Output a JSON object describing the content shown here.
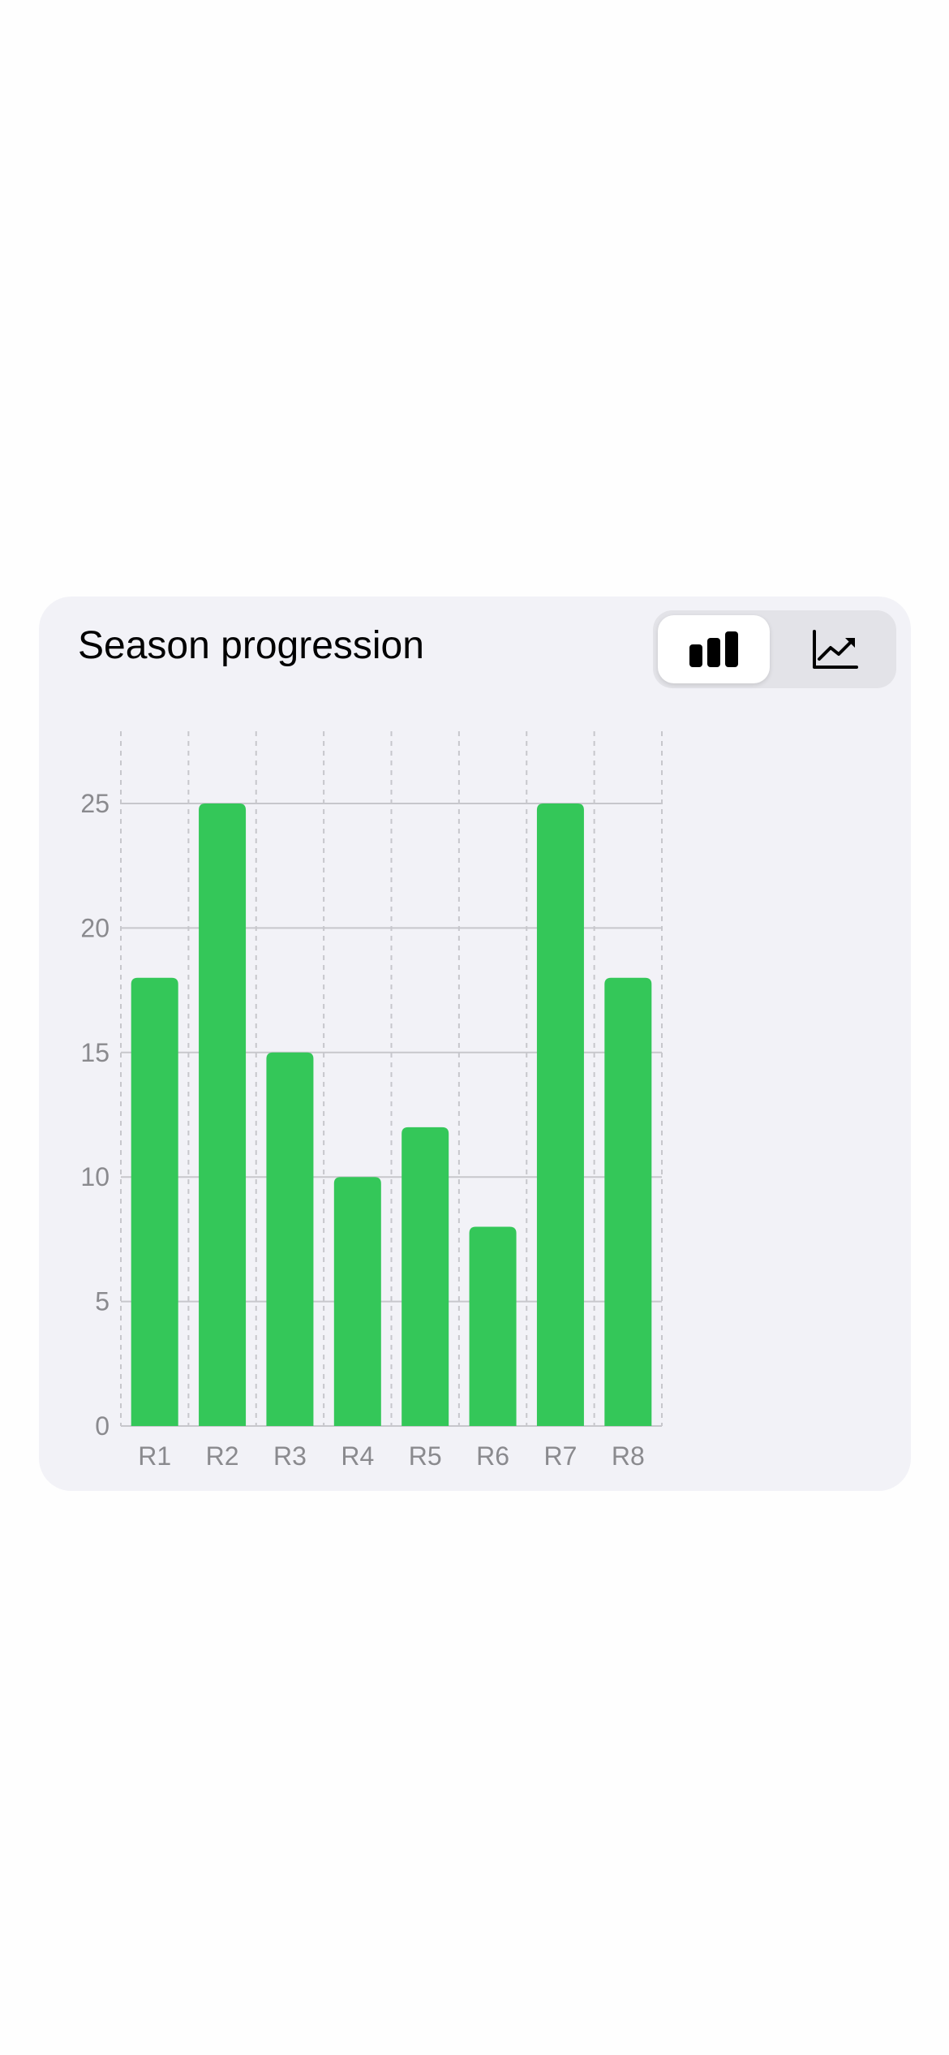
{
  "card": {
    "title": "Season progression"
  },
  "toggle": {
    "options": [
      {
        "icon": "bar-chart-icon",
        "selected": true
      },
      {
        "icon": "line-chart-icon",
        "selected": false
      }
    ]
  },
  "colors": {
    "bar": "#34c759",
    "grid": "#c7c7cc",
    "tick": "#8a8a8e",
    "card_bg": "#f2f2f7"
  },
  "chart_data": {
    "type": "bar",
    "title": "",
    "xlabel": "",
    "ylabel": "",
    "categories": [
      "R1",
      "R2",
      "R3",
      "R4",
      "R5",
      "R6",
      "R7",
      "R8"
    ],
    "values": [
      18,
      25,
      15,
      10,
      12,
      8,
      25,
      18
    ],
    "ylim": [
      0,
      25
    ],
    "yticks": [
      "0",
      "5",
      "10",
      "15",
      "20",
      "25"
    ],
    "grid": true,
    "legend": "none"
  }
}
